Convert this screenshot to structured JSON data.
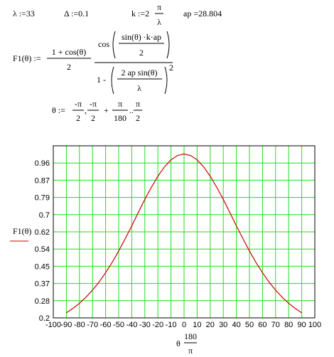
{
  "worksheet": {
    "lambda": "λ :=33",
    "delta": "Δ :=0.1",
    "k": {
      "lhs": "k :=2",
      "num": "π",
      "den": "λ"
    },
    "ap": "ap =28.804",
    "f1": {
      "lhs": "F1(θ) :=",
      "num": "1 + cos(θ)",
      "den": "2",
      "cos": "cos",
      "cos_num": "sin(θ) ·k·ap",
      "cos_den": "2",
      "one_minus": "1 -",
      "sq_num": "2 ap sin(θ)",
      "sq_den": "λ",
      "exponent": "2"
    },
    "theta": {
      "lhs": "θ :=",
      "a_num": "-π",
      "a_den": "2",
      "comma": ",",
      "b_num": "-π",
      "b_den": "2",
      "plus": "+",
      "c_num": "π",
      "c_den": "180",
      "range": "..",
      "d_num": "π",
      "d_den": "2"
    }
  },
  "chart_data": {
    "type": "line",
    "x_label": {
      "text": "θ",
      "num": "180",
      "den": "π"
    },
    "x": [
      -90,
      -85,
      -80,
      -75,
      -70,
      -65,
      -60,
      -55,
      -50,
      -45,
      -40,
      -35,
      -30,
      -25,
      -20,
      -15,
      -10,
      -5,
      0,
      5,
      10,
      15,
      20,
      25,
      30,
      35,
      40,
      45,
      50,
      55,
      60,
      65,
      70,
      75,
      80,
      85,
      90
    ],
    "series": [
      {
        "name": "F1(θ)",
        "color": "#cc0000",
        "values": [
          0.2247,
          0.2465,
          0.2714,
          0.3008,
          0.3359,
          0.3749,
          0.4207,
          0.4707,
          0.5266,
          0.5869,
          0.6491,
          0.7144,
          0.7785,
          0.8373,
          0.8916,
          0.9369,
          0.9713,
          0.9927,
          1,
          0.9927,
          0.9713,
          0.9369,
          0.8916,
          0.8373,
          0.7785,
          0.7144,
          0.6491,
          0.5869,
          0.5266,
          0.4707,
          0.4207,
          0.3749,
          0.3359,
          0.3008,
          0.2714,
          0.2465,
          0.2247
        ]
      }
    ],
    "xlim": [
      -100,
      100
    ],
    "xticks": [
      -100,
      -90,
      -80,
      -70,
      -60,
      -50,
      -40,
      -30,
      -20,
      -10,
      0,
      10,
      20,
      30,
      40,
      50,
      60,
      70,
      80,
      90,
      100
    ],
    "ylim": [
      0.2,
      1.04
    ],
    "yticks": [
      0.2,
      {
        "value": 0.284,
        "label": "0.28"
      },
      {
        "value": 0.368,
        "label": "0.37"
      },
      {
        "value": 0.452,
        "label": "0.45"
      },
      {
        "value": 0.536,
        "label": "0.54"
      },
      {
        "value": 0.62,
        "label": "0.62"
      },
      {
        "value": 0.704,
        "label": "0.7"
      },
      {
        "value": 0.788,
        "label": "0.79"
      },
      {
        "value": 0.872,
        "label": "0.87"
      },
      {
        "value": 0.956,
        "label": "0.96"
      }
    ],
    "grid": true,
    "grid_color": "#22dd22"
  }
}
